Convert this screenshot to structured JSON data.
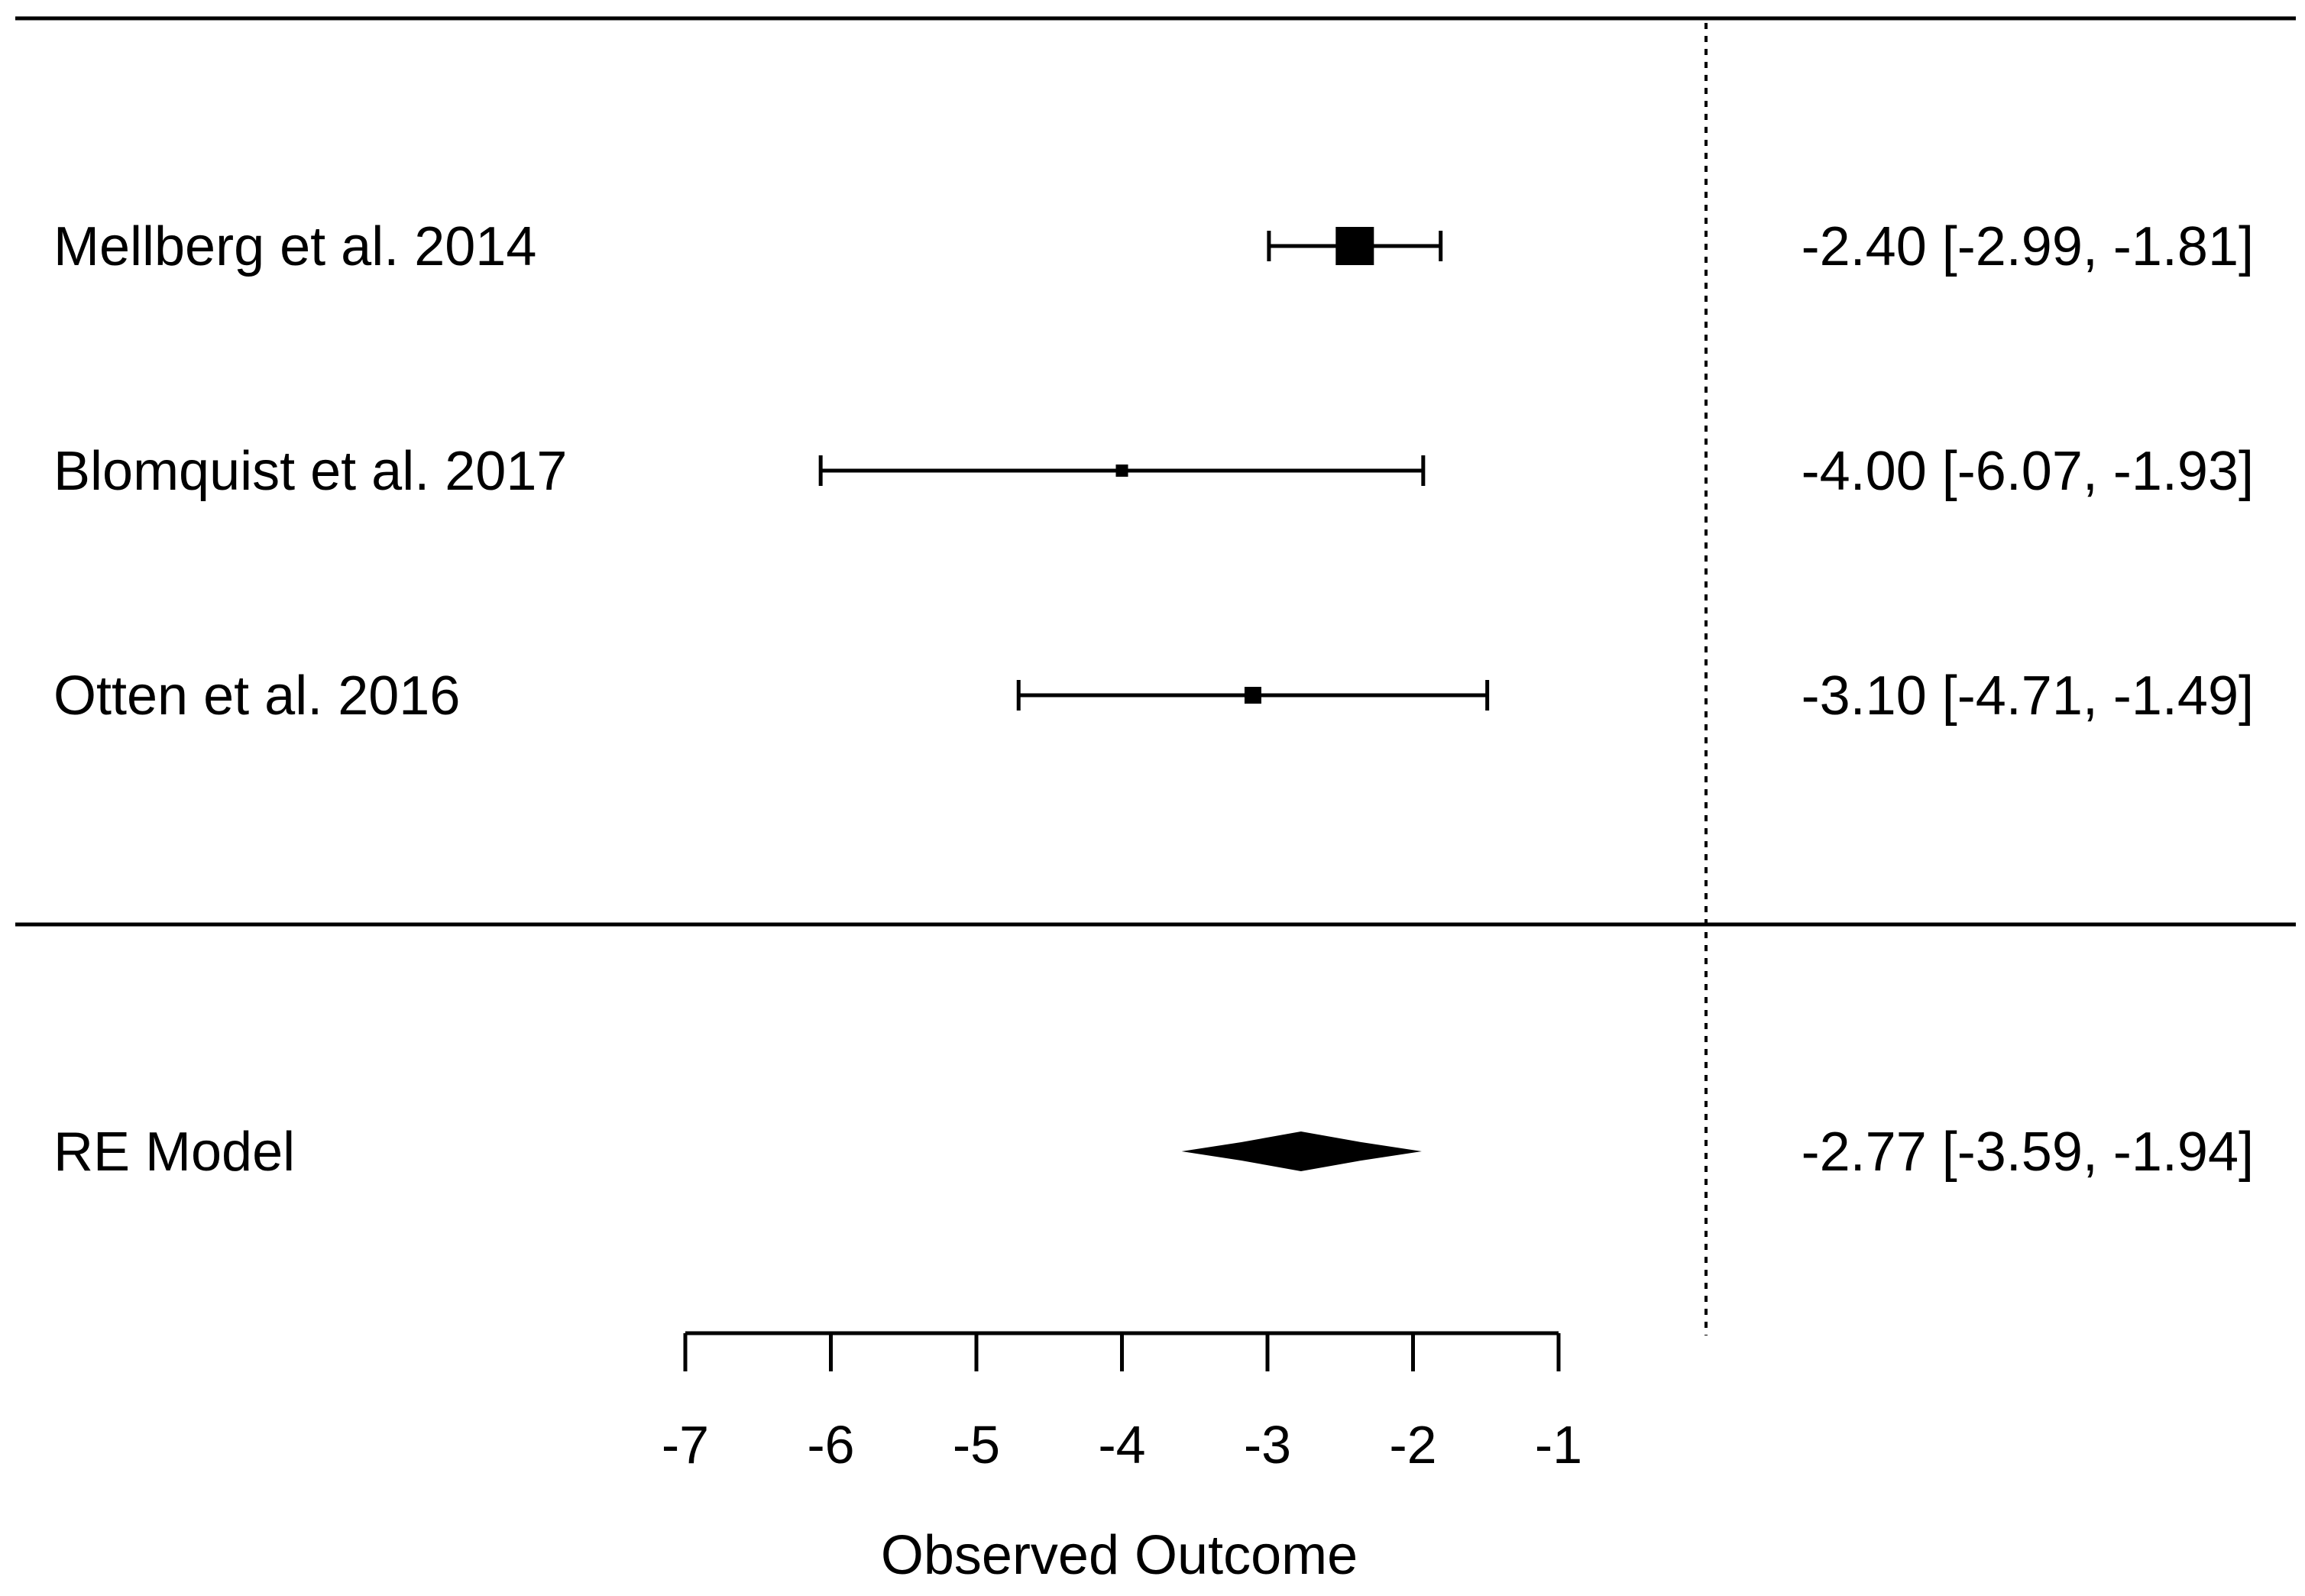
{
  "chart_data": {
    "type": "forest",
    "title": "",
    "xlabel": "Observed Outcome",
    "xlim": [
      -7,
      -1
    ],
    "xticks": [
      -7,
      -6,
      -5,
      -4,
      -3,
      -2,
      -1
    ],
    "reference_line": 0,
    "studies": [
      {
        "label": "Mellberg et al. 2014",
        "estimate": -2.4,
        "lower": -2.99,
        "upper": -1.81,
        "ci_text": "-2.40 [-2.99, -1.81]"
      },
      {
        "label": "Blomquist et al. 2017",
        "estimate": -4.0,
        "lower": -6.07,
        "upper": -1.93,
        "ci_text": "-4.00 [-6.07, -1.93]"
      },
      {
        "label": "Otten et al. 2016",
        "estimate": -3.1,
        "lower": -4.71,
        "upper": -1.49,
        "ci_text": "-3.10 [-4.71, -1.49]"
      }
    ],
    "summary": {
      "label": "RE Model",
      "estimate": -2.77,
      "lower": -3.59,
      "upper": -1.94,
      "ci_text": "-2.77 [-3.59, -1.94]"
    },
    "colors": {
      "ink": "#000000",
      "background": "#ffffff"
    }
  }
}
